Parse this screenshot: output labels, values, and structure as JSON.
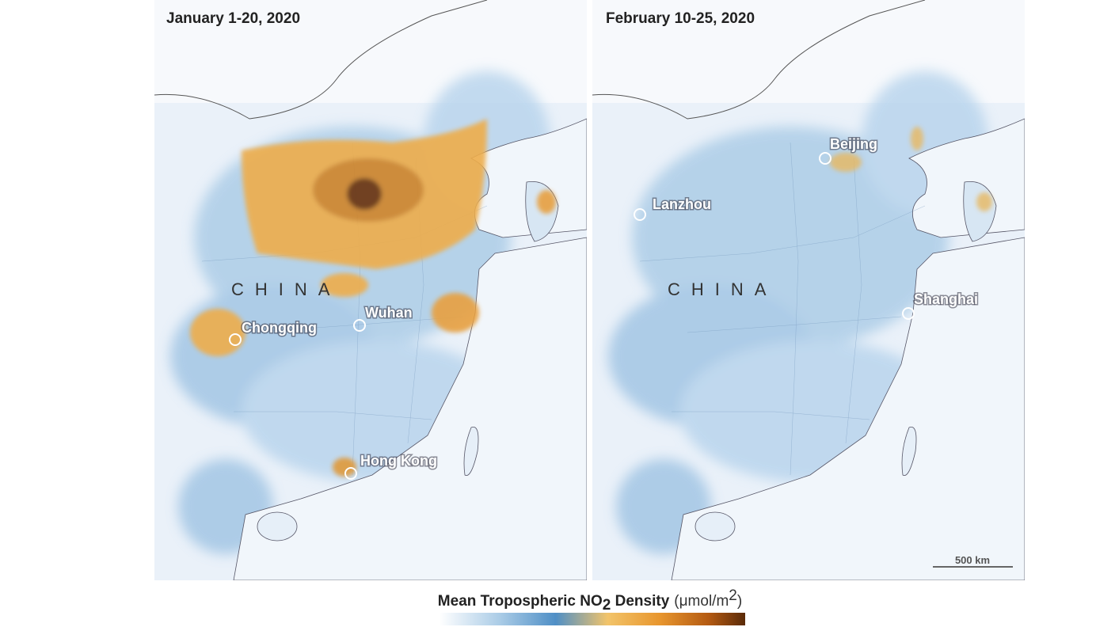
{
  "panels": [
    {
      "title": "January 1-20, 2020",
      "country": "CHINA",
      "cities": [
        "Chongqing",
        "Wuhan",
        "Hong Kong"
      ]
    },
    {
      "title": "February 10-25, 2020",
      "country": "CHINA",
      "cities": [
        "Beijing",
        "Lanzhou",
        "Shanghai"
      ],
      "scale_bar": "500 km"
    }
  ],
  "legend": {
    "title": "Mean Tropospheric NO",
    "title_sub": "2",
    "title_end": " Density",
    "unit": "(μmol/m",
    "unit_sup": "2",
    "unit_end": ")"
  }
}
